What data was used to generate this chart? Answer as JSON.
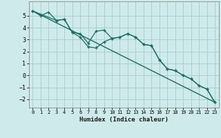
{
  "xlabel": "Humidex (Indice chaleur)",
  "background_color": "#ceeaea",
  "grid_color": "#aacece",
  "line_color": "#1a6b60",
  "xlim": [
    -0.5,
    23.5
  ],
  "ylim": [
    -2.7,
    6.2
  ],
  "yticks": [
    -2,
    -1,
    0,
    1,
    2,
    3,
    4,
    5
  ],
  "xticks": [
    0,
    1,
    2,
    3,
    4,
    5,
    6,
    7,
    8,
    9,
    10,
    11,
    12,
    13,
    14,
    15,
    16,
    17,
    18,
    19,
    20,
    21,
    22,
    23
  ],
  "line1_x": [
    0,
    1,
    2,
    3,
    4,
    5,
    6,
    7,
    8,
    9,
    10,
    11,
    12,
    13,
    14,
    15,
    16,
    17,
    18,
    19,
    20,
    21,
    22,
    23
  ],
  "line1_y": [
    5.4,
    5.0,
    5.3,
    4.6,
    4.7,
    3.6,
    3.5,
    2.7,
    3.7,
    3.8,
    3.1,
    3.2,
    3.5,
    3.2,
    2.6,
    2.5,
    1.3,
    0.55,
    0.4,
    0.0,
    -0.3,
    -0.85,
    -1.15,
    -2.25
  ],
  "line2_x": [
    0,
    3,
    4,
    5,
    6,
    7,
    8,
    9,
    10,
    11,
    12,
    13,
    14,
    15,
    16,
    17,
    18,
    19,
    20,
    21,
    22,
    23
  ],
  "line2_y": [
    5.4,
    4.6,
    4.7,
    3.6,
    3.2,
    2.4,
    2.3,
    2.8,
    3.1,
    3.2,
    3.5,
    3.2,
    2.6,
    2.5,
    1.3,
    0.55,
    0.4,
    0.0,
    -0.3,
    -0.85,
    -1.15,
    -2.25
  ],
  "line3_x": [
    0,
    23
  ],
  "line3_y": [
    5.4,
    -2.25
  ]
}
